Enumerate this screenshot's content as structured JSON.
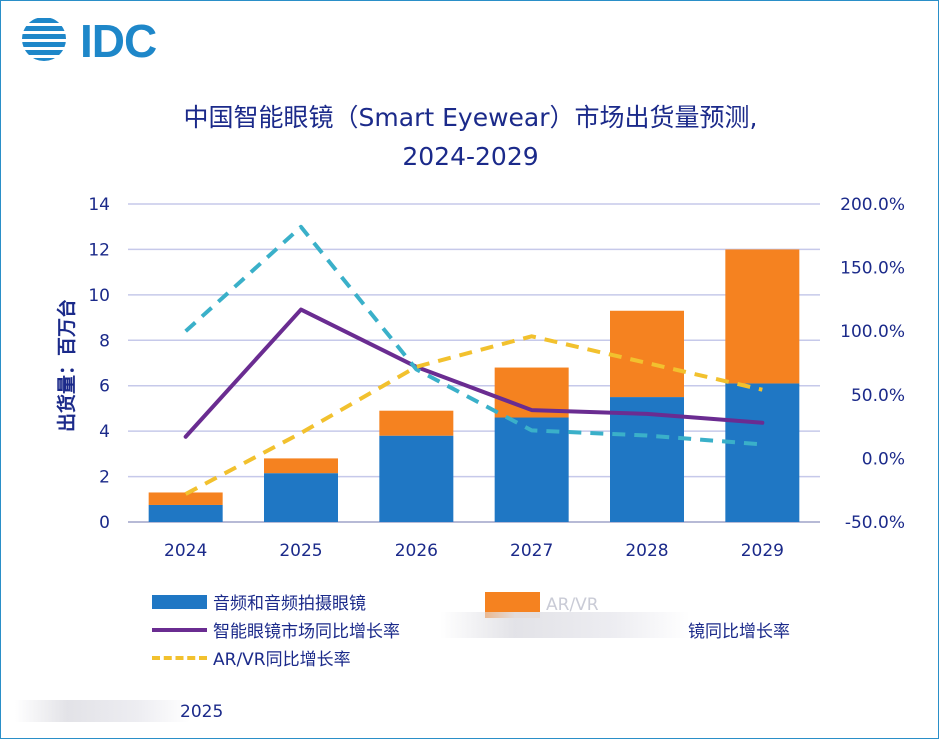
{
  "brand": {
    "logo_text": "IDC",
    "color": "#1e87c9"
  },
  "title_line1": "中国智能眼镜（Smart Eyewear）市场出货量预测,",
  "title_line2": "2024-2029",
  "footer_text": "2025",
  "legend": {
    "audio": "音频和音频拍摄眼镜",
    "arvr": "AR/VR",
    "smart_rate": "智能眼镜市场同比增长率",
    "audio_rate_partial": "镜同比增长率",
    "arvr_rate": "AR/VR同比增长率"
  },
  "chart_data": {
    "type": "bar",
    "stacked": true,
    "categories": [
      "2024",
      "2025",
      "2026",
      "2027",
      "2028",
      "2029"
    ],
    "ylabel": "出货量：百万台",
    "ylim": [
      0,
      14
    ],
    "yticks": [
      "0",
      "2",
      "4",
      "6",
      "8",
      "10",
      "12",
      "14"
    ],
    "y2lim": [
      -50,
      200
    ],
    "y2ticks": [
      "-50.0%",
      "0.0%",
      "50.0%",
      "100.0%",
      "150.0%",
      "200.0%"
    ],
    "grid": true,
    "legend_position": "bottom",
    "series": [
      {
        "name": "音频和音频拍摄眼镜",
        "kind": "bar",
        "color": "#1f77c4",
        "values": [
          0.75,
          2.15,
          3.8,
          4.6,
          5.5,
          6.1
        ]
      },
      {
        "name": "AR/VR",
        "kind": "bar",
        "color": "#f58220",
        "values": [
          0.55,
          0.65,
          1.1,
          2.2,
          3.8,
          5.9
        ]
      },
      {
        "name": "智能眼镜市场同比增长率",
        "kind": "line",
        "axis": "right",
        "color": "#6a2c91",
        "values": [
          17,
          117,
          72,
          38,
          35,
          28
        ]
      },
      {
        "name": "",
        "kind": "line-dashed",
        "axis": "right",
        "color": "#3ab0c9",
        "values": [
          100,
          182,
          70,
          22,
          18,
          11
        ]
      },
      {
        "name": "AR/VR同比增长率",
        "kind": "line-dashed",
        "axis": "right",
        "color": "#f2c12e",
        "values": [
          -28,
          20,
          72,
          96,
          75,
          54
        ]
      }
    ]
  }
}
